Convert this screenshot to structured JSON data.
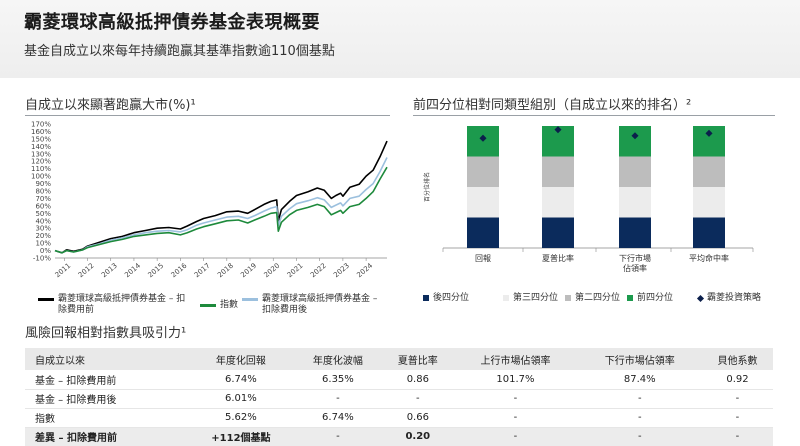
{
  "header": {
    "title": "霸菱環球高級抵押債券基金表現概要",
    "subtitle": "基金自成立以來每年持續跑贏其基準指數逾110個基點"
  },
  "left_chart": {
    "title": "自成立以來顯著跑贏大市(%)¹",
    "legend": [
      "霸菱環球高級抵押債券基金 – 扣除費用前",
      "指數",
      "霸菱環球高級抵押債券基金 – 扣除費用後"
    ]
  },
  "right_chart": {
    "title": "前四分位相對同類型組別（自成立以來的排名）²",
    "y_label": "百分位排名",
    "legend": [
      "後四分位",
      "第三四分位",
      "第二四分位",
      "前四分位",
      "霸菱投資策略"
    ]
  },
  "table": {
    "title": "風險回報相對指數具吸引力¹",
    "headers": [
      "自成立以來",
      "年度化回報",
      "年度化波幅",
      "夏普比率",
      "上行市場佔領率",
      "下行市場佔領率",
      "貝他系數"
    ],
    "rows": [
      [
        "基金 – 扣除費用前",
        "6.74%",
        "6.35%",
        "0.86",
        "101.7%",
        "87.4%",
        "0.92"
      ],
      [
        "基金 – 扣除費用後",
        "6.01%",
        "-",
        "-",
        "-",
        "-",
        "-"
      ],
      [
        "指數",
        "5.62%",
        "6.74%",
        "0.66",
        "-",
        "-",
        "-"
      ],
      [
        "差異 – 扣除費用前",
        "+112個基點",
        "-",
        "0.20",
        "-",
        "-",
        "-"
      ]
    ]
  },
  "colors": {
    "fund_gross": "#000000",
    "index": "#1e8a3c",
    "fund_net": "#9cc0de",
    "q_bottom": "#0b2b5c",
    "q_third": "#ececec",
    "q_second": "#bdbdbd",
    "q_top": "#1c9a4d",
    "marker": "#0b1f4b"
  },
  "chart_data": [
    {
      "type": "line",
      "title": "自成立以來顯著跑贏大市(%)¹",
      "x_ticks": [
        "2011",
        "2012",
        "2013",
        "2014",
        "2015",
        "2016",
        "2017",
        "2018",
        "2019",
        "2020",
        "2021",
        "2022",
        "2023",
        "2024"
      ],
      "y_ticks": [
        "-10%",
        "0%",
        "10%",
        "20%",
        "30%",
        "40%",
        "50%",
        "60%",
        "70%",
        "80%",
        "90%",
        "100%",
        "110%",
        "120%",
        "130%",
        "140%",
        "150%",
        "160%",
        "170%"
      ],
      "ylim": [
        -10,
        170
      ],
      "xlim": [
        2010.6,
        2024.9
      ],
      "series": [
        {
          "name": "霸菱環球高級抵押債券基金 – 扣除費用前",
          "color": "#000000",
          "points": [
            [
              2010.6,
              0
            ],
            [
              2010.9,
              -3
            ],
            [
              2011.1,
              1
            ],
            [
              2011.4,
              -1
            ],
            [
              2011.8,
              2
            ],
            [
              2012.0,
              6
            ],
            [
              2012.5,
              11
            ],
            [
              2013.0,
              16
            ],
            [
              2013.5,
              19
            ],
            [
              2014.0,
              24
            ],
            [
              2014.5,
              27
            ],
            [
              2015.0,
              30
            ],
            [
              2015.5,
              31
            ],
            [
              2016.0,
              29
            ],
            [
              2016.3,
              33
            ],
            [
              2016.7,
              39
            ],
            [
              2017.0,
              43
            ],
            [
              2017.5,
              47
            ],
            [
              2018.0,
              52
            ],
            [
              2018.5,
              53
            ],
            [
              2018.9,
              50
            ],
            [
              2019.2,
              55
            ],
            [
              2019.6,
              62
            ],
            [
              2019.9,
              66
            ],
            [
              2020.15,
              68
            ],
            [
              2020.22,
              40
            ],
            [
              2020.35,
              55
            ],
            [
              2020.7,
              66
            ],
            [
              2021.0,
              74
            ],
            [
              2021.5,
              79
            ],
            [
              2021.9,
              84
            ],
            [
              2022.2,
              81
            ],
            [
              2022.5,
              70
            ],
            [
              2022.7,
              74
            ],
            [
              2022.9,
              77
            ],
            [
              2023.0,
              73
            ],
            [
              2023.3,
              85
            ],
            [
              2023.7,
              89
            ],
            [
              2024.0,
              100
            ],
            [
              2024.3,
              108
            ],
            [
              2024.6,
              126
            ],
            [
              2024.9,
              147
            ]
          ]
        },
        {
          "name": "霸菱環球高級抵押債券基金 – 扣除費用後",
          "color": "#9cc0de",
          "points": [
            [
              2010.6,
              0
            ],
            [
              2010.9,
              -3
            ],
            [
              2011.1,
              0
            ],
            [
              2011.4,
              -2
            ],
            [
              2011.8,
              1
            ],
            [
              2012.0,
              5
            ],
            [
              2012.5,
              9
            ],
            [
              2013.0,
              14
            ],
            [
              2013.5,
              17
            ],
            [
              2014.0,
              21
            ],
            [
              2014.5,
              24
            ],
            [
              2015.0,
              26
            ],
            [
              2015.5,
              27
            ],
            [
              2016.0,
              25
            ],
            [
              2016.3,
              28
            ],
            [
              2016.7,
              34
            ],
            [
              2017.0,
              37
            ],
            [
              2017.5,
              41
            ],
            [
              2018.0,
              45
            ],
            [
              2018.5,
              46
            ],
            [
              2018.9,
              43
            ],
            [
              2019.2,
              47
            ],
            [
              2019.6,
              53
            ],
            [
              2019.9,
              57
            ],
            [
              2020.15,
              59
            ],
            [
              2020.22,
              33
            ],
            [
              2020.35,
              46
            ],
            [
              2020.7,
              56
            ],
            [
              2021.0,
              63
            ],
            [
              2021.5,
              67
            ],
            [
              2021.9,
              71
            ],
            [
              2022.2,
              68
            ],
            [
              2022.5,
              58
            ],
            [
              2022.7,
              61
            ],
            [
              2022.9,
              64
            ],
            [
              2023.0,
              60
            ],
            [
              2023.3,
              70
            ],
            [
              2023.7,
              73
            ],
            [
              2024.0,
              82
            ],
            [
              2024.3,
              90
            ],
            [
              2024.6,
              106
            ],
            [
              2024.9,
              125
            ]
          ]
        },
        {
          "name": "指數",
          "color": "#1e8a3c",
          "points": [
            [
              2010.6,
              0
            ],
            [
              2010.9,
              -3
            ],
            [
              2011.1,
              0
            ],
            [
              2011.4,
              -2
            ],
            [
              2011.8,
              1
            ],
            [
              2012.0,
              4
            ],
            [
              2012.5,
              8
            ],
            [
              2013.0,
              12
            ],
            [
              2013.5,
              15
            ],
            [
              2014.0,
              19
            ],
            [
              2014.5,
              21
            ],
            [
              2015.0,
              23
            ],
            [
              2015.5,
              24
            ],
            [
              2016.0,
              21
            ],
            [
              2016.3,
              24
            ],
            [
              2016.7,
              29
            ],
            [
              2017.0,
              32
            ],
            [
              2017.5,
              36
            ],
            [
              2018.0,
              40
            ],
            [
              2018.5,
              41
            ],
            [
              2018.9,
              37
            ],
            [
              2019.2,
              41
            ],
            [
              2019.6,
              46
            ],
            [
              2019.9,
              50
            ],
            [
              2020.15,
              51
            ],
            [
              2020.22,
              26
            ],
            [
              2020.35,
              38
            ],
            [
              2020.7,
              48
            ],
            [
              2021.0,
              54
            ],
            [
              2021.5,
              58
            ],
            [
              2021.9,
              62
            ],
            [
              2022.2,
              59
            ],
            [
              2022.5,
              48
            ],
            [
              2022.7,
              51
            ],
            [
              2022.9,
              54
            ],
            [
              2023.0,
              50
            ],
            [
              2023.3,
              59
            ],
            [
              2023.7,
              62
            ],
            [
              2024.0,
              70
            ],
            [
              2024.3,
              79
            ],
            [
              2024.6,
              96
            ],
            [
              2024.9,
              112
            ]
          ]
        }
      ]
    },
    {
      "type": "bar",
      "title": "前四分位相對同類型組別（自成立以來的排名）²",
      "categories": [
        "回報",
        "夏普比率",
        "下行市場\n佔領率",
        "平均命中率"
      ],
      "stack_order": [
        "後四分位",
        "第三四分位",
        "第二四分位",
        "前四分位"
      ],
      "series": [
        {
          "name": "後四分位",
          "values": [
            25,
            25,
            25,
            25
          ]
        },
        {
          "name": "第三四分位",
          "values": [
            25,
            25,
            25,
            25
          ]
        },
        {
          "name": "第二四分位",
          "values": [
            25,
            25,
            25,
            25
          ]
        },
        {
          "name": "前四分位",
          "values": [
            25,
            25,
            25,
            25
          ]
        }
      ],
      "marker": {
        "name": "霸菱投資策略",
        "percentile": [
          90,
          97,
          92,
          94
        ]
      }
    }
  ]
}
